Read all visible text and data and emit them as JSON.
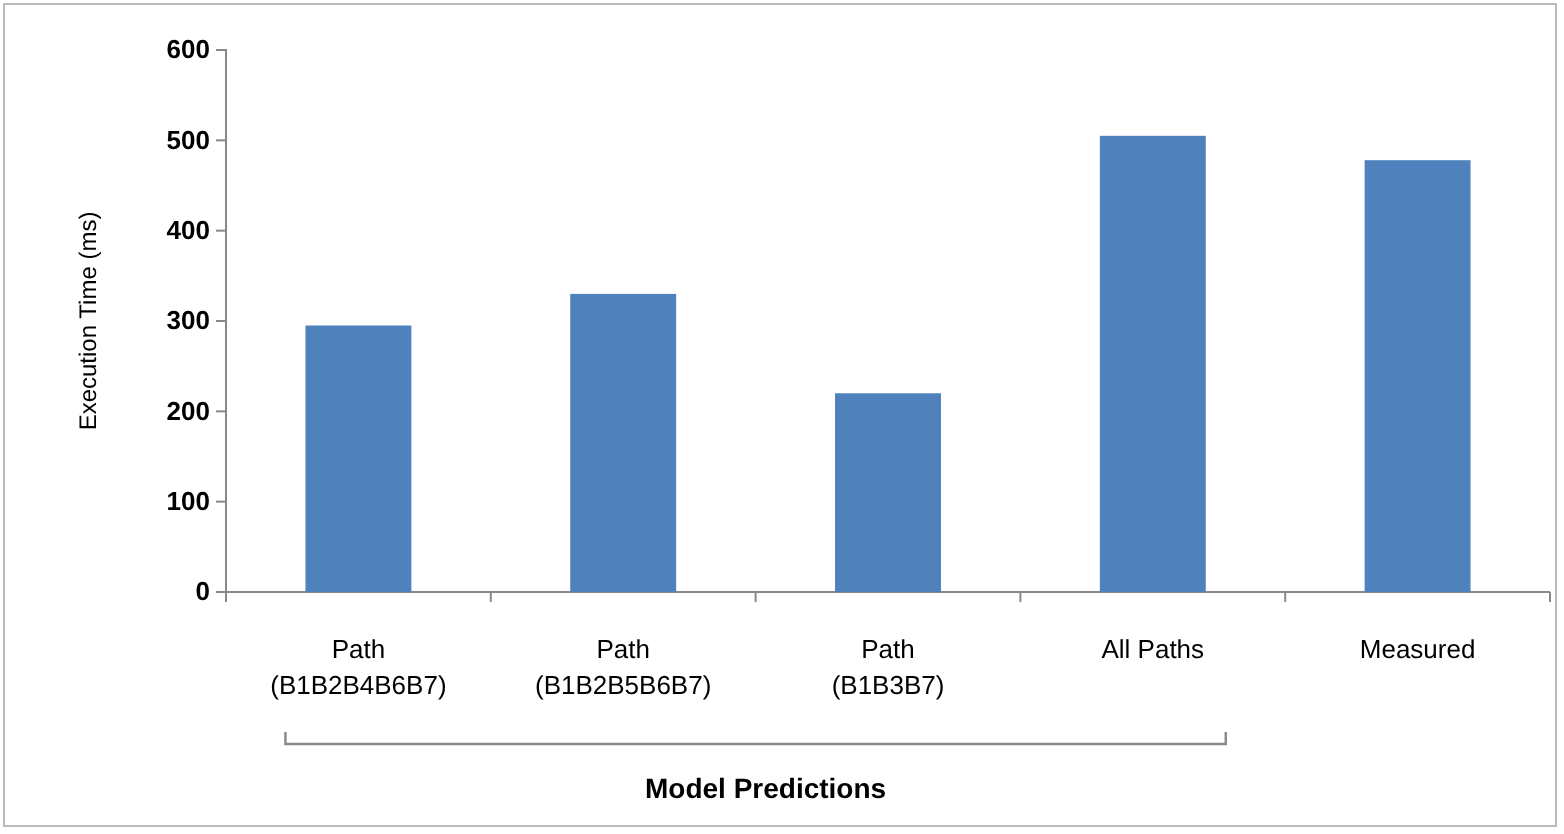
{
  "chart_data": {
    "type": "bar",
    "categories": [
      "Path (B1B2B4B6B7)",
      "Path (B1B2B5B6B7)",
      "Path (B1B3B7)",
      "All Paths",
      "Measured"
    ],
    "values": [
      295,
      330,
      220,
      505,
      478
    ],
    "color": "#4f81bd",
    "ylabel": "Execution Time (ms)",
    "ylim": [
      0,
      600
    ],
    "yticks": [
      0,
      100,
      200,
      300,
      400,
      500,
      600
    ],
    "annotations": [
      "Model Predictions"
    ],
    "grid": false
  }
}
